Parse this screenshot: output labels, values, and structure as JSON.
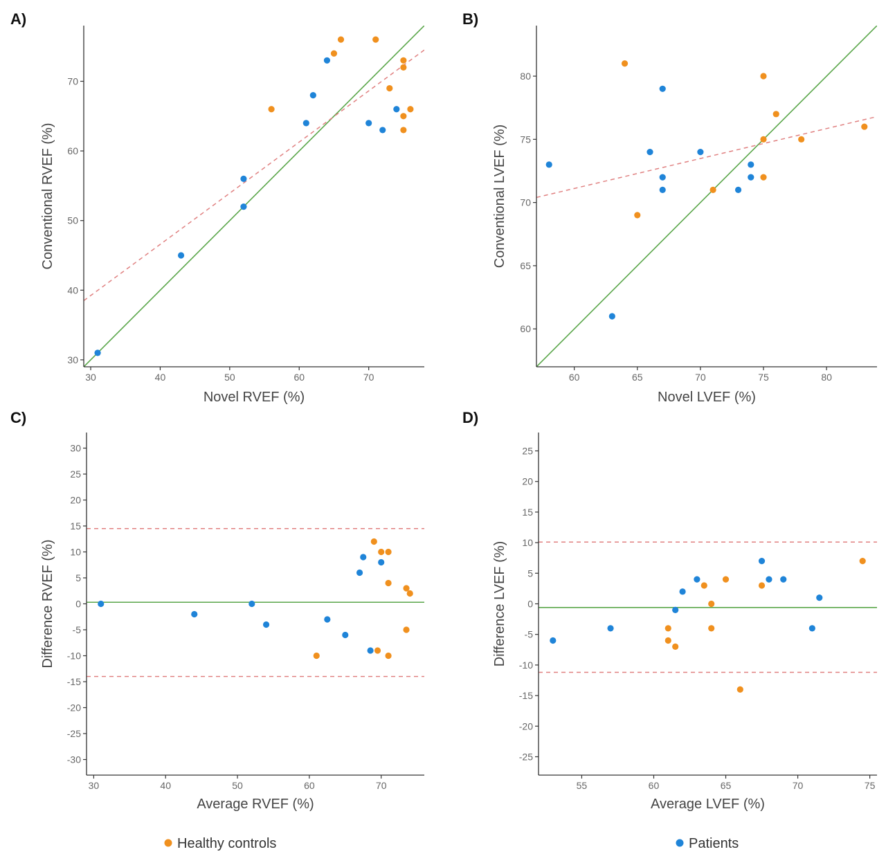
{
  "colors": {
    "healthy": "#f0901e",
    "patients": "#1f84d8",
    "identity": "#5aa64a",
    "regression": "#e08080",
    "axis": "#333333"
  },
  "legend": {
    "healthy_label": "Healthy controls",
    "patients_label": "Patients"
  },
  "chart_data": [
    {
      "panel_label": "A)",
      "type": "scatter",
      "xlabel": "Novel RVEF (%)",
      "ylabel": "Conventional RVEF (%)",
      "xlim": [
        29,
        78
      ],
      "ylim": [
        29,
        78
      ],
      "xticks": [
        30,
        40,
        50,
        60,
        70
      ],
      "yticks": [
        30,
        40,
        50,
        60,
        70
      ],
      "series": [
        {
          "name": "Healthy controls",
          "group": "healthy",
          "points": [
            [
              56,
              66
            ],
            [
              65,
              74
            ],
            [
              66,
              76
            ],
            [
              71,
              76
            ],
            [
              73,
              69
            ],
            [
              75,
              73
            ],
            [
              75,
              72
            ],
            [
              75,
              65
            ],
            [
              75,
              63
            ],
            [
              76,
              66
            ]
          ]
        },
        {
          "name": "Patients",
          "group": "patients",
          "points": [
            [
              31,
              31
            ],
            [
              43,
              45
            ],
            [
              52,
              56
            ],
            [
              52,
              52
            ],
            [
              61,
              64
            ],
            [
              62,
              68
            ],
            [
              64,
              73
            ],
            [
              70,
              64
            ],
            [
              72,
              63
            ],
            [
              74,
              66
            ]
          ]
        }
      ],
      "lines": [
        {
          "kind": "identity",
          "style": "solid",
          "x": [
            29,
            78
          ],
          "y": [
            29,
            78
          ]
        },
        {
          "kind": "regression",
          "style": "dashed",
          "x": [
            29,
            78
          ],
          "y": [
            38.5,
            74.5
          ]
        }
      ]
    },
    {
      "panel_label": "B)",
      "type": "scatter",
      "xlabel": "Novel LVEF (%)",
      "ylabel": "Conventional LVEF (%)",
      "xlim": [
        57,
        84
      ],
      "ylim": [
        57,
        84
      ],
      "xticks": [
        60,
        65,
        70,
        75,
        80
      ],
      "yticks": [
        60,
        65,
        70,
        75,
        80
      ],
      "series": [
        {
          "name": "Healthy controls",
          "group": "healthy",
          "points": [
            [
              64,
              81
            ],
            [
              65,
              69
            ],
            [
              71,
              71
            ],
            [
              75,
              80
            ],
            [
              75,
              75
            ],
            [
              75,
              72
            ],
            [
              76,
              77
            ],
            [
              78,
              75
            ],
            [
              83,
              76
            ]
          ]
        },
        {
          "name": "Patients",
          "group": "patients",
          "points": [
            [
              58,
              73
            ],
            [
              63,
              61
            ],
            [
              66,
              74
            ],
            [
              67,
              79
            ],
            [
              67,
              72
            ],
            [
              67,
              71
            ],
            [
              70,
              74
            ],
            [
              73,
              71
            ],
            [
              74,
              73
            ],
            [
              74,
              72
            ]
          ]
        }
      ],
      "lines": [
        {
          "kind": "identity",
          "style": "solid",
          "x": [
            57,
            84
          ],
          "y": [
            57,
            84
          ]
        },
        {
          "kind": "regression",
          "style": "dashed",
          "x": [
            57,
            84
          ],
          "y": [
            70.4,
            76.8
          ]
        }
      ]
    },
    {
      "panel_label": "C)",
      "type": "scatter",
      "xlabel": "Average RVEF (%)",
      "ylabel": "Difference RVEF (%)",
      "xlim": [
        29,
        76
      ],
      "ylim": [
        -33,
        33
      ],
      "xticks": [
        30,
        40,
        50,
        60,
        70
      ],
      "yticks": [
        30,
        25,
        20,
        15,
        10,
        5,
        0,
        -5,
        -10,
        -15,
        -20,
        -25,
        -30
      ],
      "series": [
        {
          "name": "Healthy controls",
          "group": "healthy",
          "points": [
            [
              61,
              -10
            ],
            [
              69,
              12
            ],
            [
              69.5,
              -9
            ],
            [
              70,
              10
            ],
            [
              71,
              10
            ],
            [
              71,
              4
            ],
            [
              71,
              -10
            ],
            [
              73.5,
              3
            ],
            [
              73.5,
              -5
            ],
            [
              74,
              2
            ]
          ]
        },
        {
          "name": "Patients",
          "group": "patients",
          "points": [
            [
              31,
              0
            ],
            [
              44,
              -2
            ],
            [
              52,
              0
            ],
            [
              54,
              -4
            ],
            [
              62.5,
              -3
            ],
            [
              65,
              -6
            ],
            [
              67,
              6
            ],
            [
              67.5,
              9
            ],
            [
              68.5,
              -9
            ],
            [
              70,
              8
            ]
          ]
        }
      ],
      "lines": [
        {
          "kind": "identity",
          "style": "solid",
          "x": [
            29,
            76
          ],
          "y": [
            0.3,
            0.3
          ]
        },
        {
          "kind": "regression",
          "style": "dashed",
          "x": [
            29,
            76
          ],
          "y": [
            14.5,
            14.5
          ]
        },
        {
          "kind": "regression",
          "style": "dashed",
          "x": [
            29,
            76
          ],
          "y": [
            -14,
            -14
          ]
        }
      ]
    },
    {
      "panel_label": "D)",
      "type": "scatter",
      "xlabel": "Average LVEF (%)",
      "ylabel": "Difference LVEF (%)",
      "xlim": [
        52,
        75.5
      ],
      "ylim": [
        -28,
        28
      ],
      "xticks": [
        55,
        60,
        65,
        70,
        75
      ],
      "yticks": [
        25,
        20,
        15,
        10,
        5,
        0,
        -5,
        -10,
        -15,
        -20,
        -25
      ],
      "series": [
        {
          "name": "Healthy controls",
          "group": "healthy",
          "points": [
            [
              61,
              -4
            ],
            [
              61,
              -6
            ],
            [
              61.5,
              -7
            ],
            [
              63.5,
              3
            ],
            [
              64,
              0
            ],
            [
              64,
              -4
            ],
            [
              65,
              4
            ],
            [
              66,
              -14
            ],
            [
              67.5,
              3
            ],
            [
              74.5,
              7
            ]
          ]
        },
        {
          "name": "Patients",
          "group": "patients",
          "points": [
            [
              53,
              -6
            ],
            [
              57,
              -4
            ],
            [
              61.5,
              -1
            ],
            [
              62,
              2
            ],
            [
              63,
              4
            ],
            [
              67.5,
              7
            ],
            [
              68,
              4
            ],
            [
              69,
              4
            ],
            [
              71,
              -4
            ],
            [
              71.5,
              1
            ]
          ]
        }
      ],
      "lines": [
        {
          "kind": "identity",
          "style": "solid",
          "x": [
            52,
            75.5
          ],
          "y": [
            -0.6,
            -0.6
          ]
        },
        {
          "kind": "regression",
          "style": "dashed",
          "x": [
            52,
            75.5
          ],
          "y": [
            10.1,
            10.1
          ]
        },
        {
          "kind": "regression",
          "style": "dashed",
          "x": [
            52,
            75.5
          ],
          "y": [
            -11.2,
            -11.2
          ]
        }
      ]
    }
  ]
}
